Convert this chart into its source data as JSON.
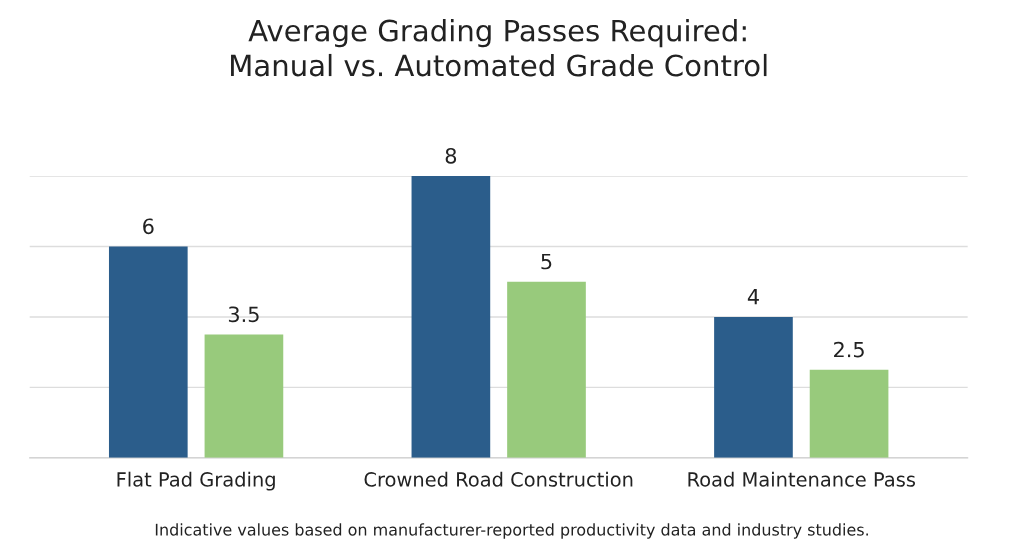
{
  "chart_data": {
    "type": "bar",
    "title": "Average Grading Passes Required:\nManual vs. Automated Grade Control",
    "categories": [
      "Flat Pad Grading",
      "Crowned Road Construction",
      "Road Maintenance Pass"
    ],
    "series": [
      {
        "color": "#2b5d8b",
        "values": [
          6,
          8,
          4
        ]
      },
      {
        "color": "#98ca7c",
        "values": [
          3.5,
          5,
          2.5
        ]
      }
    ],
    "ylim": [
      0,
      8
    ],
    "yticks": [
      {
        "value": 0,
        "label": null
      },
      {
        "value": 2,
        "label": null
      },
      {
        "value": 4,
        "label": null
      },
      {
        "value": 6,
        "label": null
      },
      {
        "value": 8,
        "label": null
      }
    ],
    "tick_labels": "x",
    "grid": "y",
    "data_labels": true,
    "legend": false,
    "annotations": [
      "Indicative values based on manufacturer-reported productivity data and industry studies."
    ]
  }
}
